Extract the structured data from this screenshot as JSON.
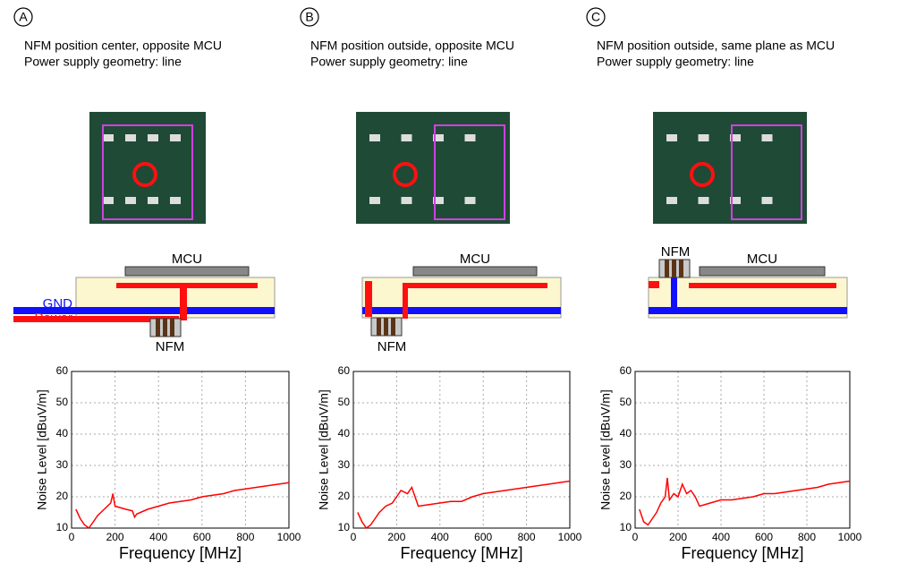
{
  "panels": [
    {
      "label": "A",
      "title": "NFM position center, opposite MCU",
      "subtitle": "Power supply geometry: line",
      "mcu": "MCU",
      "nfm": "NFM",
      "gnd": "GND",
      "power": "Power"
    },
    {
      "label": "B",
      "title": "NFM position outside, opposite MCU",
      "subtitle": "Power supply geometry: line",
      "mcu": "MCU",
      "nfm": "NFM"
    },
    {
      "label": "C",
      "title": "NFM position outside, same plane as MCU",
      "subtitle": "Power supply geometry: line",
      "mcu": "MCU",
      "nfm": "NFM"
    }
  ],
  "chart_data": [
    {
      "type": "line",
      "xlabel": "Frequency [MHz]",
      "ylabel": "Noise Level [dBuV/m]",
      "color": "#ff0000",
      "grid": true,
      "xlim": [
        0,
        1000
      ],
      "ylim": [
        10,
        60
      ],
      "xticks": [
        0,
        200,
        400,
        600,
        800,
        1000
      ],
      "yticks": [
        10,
        20,
        30,
        40,
        50,
        60
      ],
      "x": [
        20,
        40,
        60,
        80,
        100,
        120,
        150,
        180,
        190,
        200,
        250,
        280,
        290,
        300,
        350,
        400,
        450,
        500,
        550,
        600,
        650,
        700,
        750,
        800,
        850,
        900,
        950,
        1000
      ],
      "values": [
        16,
        13,
        11,
        10,
        12,
        14,
        16,
        18,
        21,
        17,
        16,
        15.5,
        13.5,
        14.5,
        16,
        17,
        18,
        18.5,
        19,
        20,
        20.5,
        21,
        22,
        22.5,
        23,
        23.5,
        24,
        24.5
      ]
    },
    {
      "type": "line",
      "xlabel": "Frequency [MHz]",
      "ylabel": "Noise Level [dBuV/m]",
      "color": "#ff0000",
      "grid": true,
      "xlim": [
        0,
        1000
      ],
      "ylim": [
        10,
        60
      ],
      "xticks": [
        0,
        200,
        400,
        600,
        800,
        1000
      ],
      "yticks": [
        10,
        20,
        30,
        40,
        50,
        60
      ],
      "x": [
        20,
        40,
        60,
        80,
        100,
        120,
        150,
        180,
        200,
        220,
        250,
        270,
        290,
        300,
        350,
        400,
        450,
        500,
        550,
        600,
        650,
        700,
        750,
        800,
        850,
        900,
        950,
        1000
      ],
      "values": [
        15,
        12,
        10,
        11,
        13,
        15,
        17,
        18,
        20,
        22,
        21,
        23,
        19,
        17,
        17.5,
        18,
        18.5,
        18.5,
        20,
        21,
        21.5,
        22,
        22.5,
        23,
        23.5,
        24,
        24.5,
        25
      ]
    },
    {
      "type": "line",
      "xlabel": "Frequency [MHz]",
      "ylabel": "Noise Level [dBuV/m]",
      "color": "#ff0000",
      "grid": true,
      "xlim": [
        0,
        1000
      ],
      "ylim": [
        10,
        60
      ],
      "xticks": [
        0,
        200,
        400,
        600,
        800,
        1000
      ],
      "yticks": [
        10,
        20,
        30,
        40,
        50,
        60
      ],
      "x": [
        20,
        40,
        60,
        80,
        100,
        120,
        140,
        150,
        160,
        180,
        200,
        220,
        240,
        260,
        280,
        300,
        350,
        400,
        450,
        500,
        550,
        600,
        650,
        700,
        750,
        800,
        850,
        900,
        950,
        1000
      ],
      "values": [
        16,
        12,
        11,
        13,
        15,
        18,
        20,
        26,
        19,
        21,
        20,
        24,
        21,
        22,
        20,
        17,
        18,
        19,
        19,
        19.5,
        20,
        21,
        21,
        21.5,
        22,
        22.5,
        23,
        24,
        24.5,
        25
      ]
    }
  ]
}
